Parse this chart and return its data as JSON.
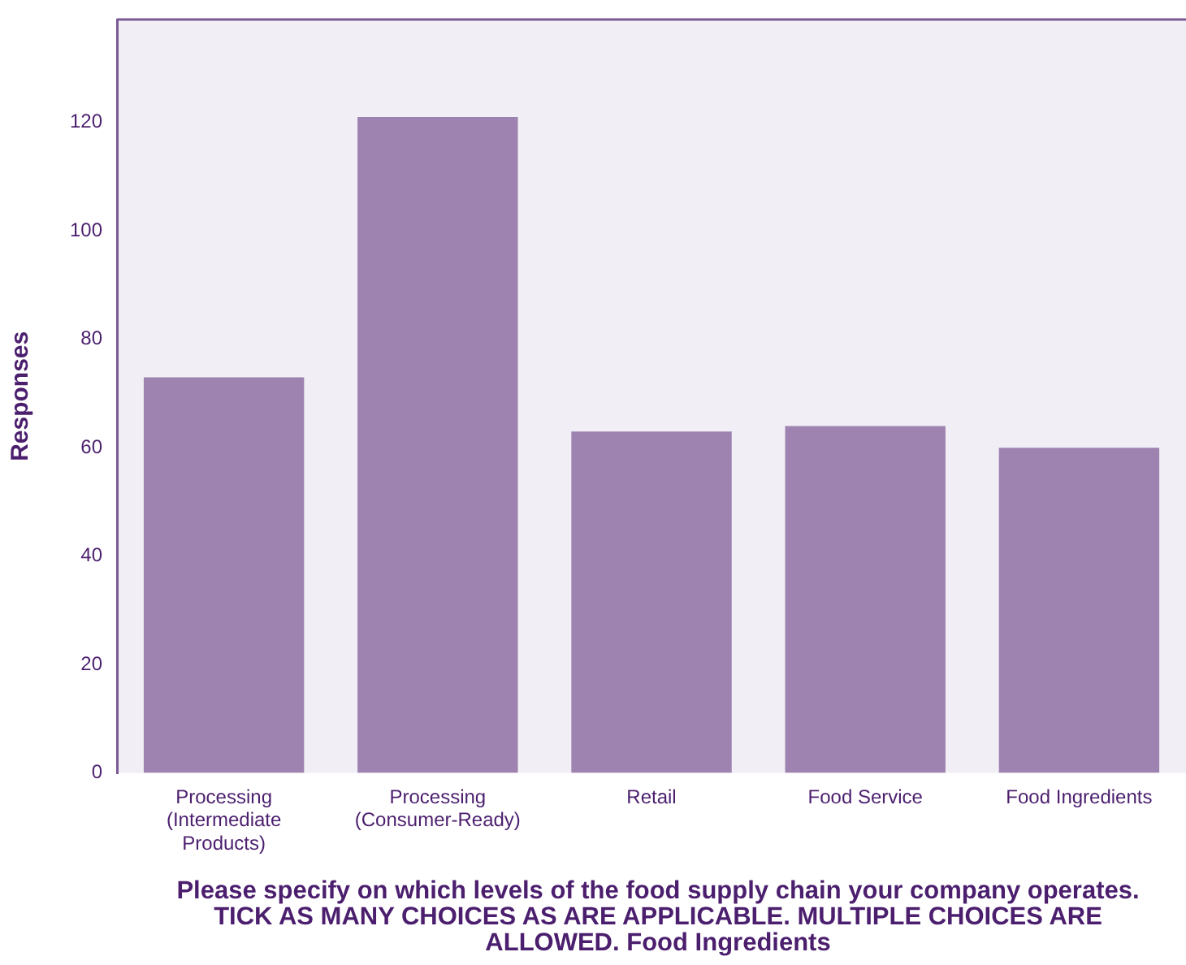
{
  "chart_data": {
    "type": "bar",
    "ylabel": "Responses",
    "xlabel": "Please specify on which levels of the food supply chain your company operates.  TICK AS MANY CHOICES AS ARE APPLICABLE. MULTIPLE CHOICES ARE ALLOWED. Food Ingredients",
    "categories": [
      "Processing\n(Intermediate\nProducts)",
      "Processing\n(Consumer-Ready)",
      "Retail",
      "Food Service",
      "Food Ingredients"
    ],
    "values": [
      73,
      121,
      63,
      64,
      60
    ],
    "color": "#9e82b0",
    "ylim": [
      0,
      139
    ],
    "yticks": [
      0,
      20,
      40,
      60,
      80,
      100,
      120
    ],
    "grid": false,
    "legend": false
  }
}
